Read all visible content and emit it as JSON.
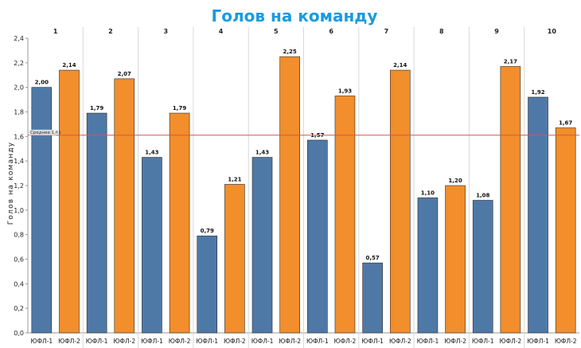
{
  "chart_data": {
    "type": "bar",
    "title": "Голов на команду",
    "ylabel": "Голов на команду",
    "ylim": [
      0,
      2.4
    ],
    "yticks": [
      "0,0",
      "0,2",
      "0,4",
      "0,6",
      "0,8",
      "1,0",
      "1,2",
      "1,4",
      "1,6",
      "1,8",
      "2,0",
      "2,2",
      "2,4"
    ],
    "grid": "vertical-separators",
    "groups": [
      {
        "label": "1",
        "bars": [
          {
            "category": "ЮФЛ-1",
            "value": 2.0,
            "label": "2,00"
          },
          {
            "category": "ЮФЛ-2",
            "value": 2.14,
            "label": "2,14"
          }
        ]
      },
      {
        "label": "2",
        "bars": [
          {
            "category": "ЮФЛ-1",
            "value": 1.79,
            "label": "1,79"
          },
          {
            "category": "ЮФЛ-2",
            "value": 2.07,
            "label": "2,07"
          }
        ]
      },
      {
        "label": "3",
        "bars": [
          {
            "category": "ЮФЛ-1",
            "value": 1.43,
            "label": "1,43"
          },
          {
            "category": "ЮФЛ-2",
            "value": 1.79,
            "label": "1,79"
          }
        ]
      },
      {
        "label": "4",
        "bars": [
          {
            "category": "ЮФЛ-1",
            "value": 0.79,
            "label": "0,79"
          },
          {
            "category": "ЮФЛ-2",
            "value": 1.21,
            "label": "1,21"
          }
        ]
      },
      {
        "label": "5",
        "bars": [
          {
            "category": "ЮФЛ-1",
            "value": 1.43,
            "label": "1,43"
          },
          {
            "category": "ЮФЛ-2",
            "value": 2.25,
            "label": "2,25"
          }
        ]
      },
      {
        "label": "6",
        "bars": [
          {
            "category": "ЮФЛ-1",
            "value": 1.57,
            "label": "1,57"
          },
          {
            "category": "ЮФЛ-2",
            "value": 1.93,
            "label": "1,93"
          }
        ]
      },
      {
        "label": "7",
        "bars": [
          {
            "category": "ЮФЛ-1",
            "value": 0.57,
            "label": "0,57"
          },
          {
            "category": "ЮФЛ-2",
            "value": 2.14,
            "label": "2,14"
          }
        ]
      },
      {
        "label": "8",
        "bars": [
          {
            "category": "ЮФЛ-1",
            "value": 1.1,
            "label": "1,10"
          },
          {
            "category": "ЮФЛ-2",
            "value": 1.2,
            "label": "1,20"
          }
        ]
      },
      {
        "label": "9",
        "bars": [
          {
            "category": "ЮФЛ-1",
            "value": 1.08,
            "label": "1,08"
          },
          {
            "category": "ЮФЛ-2",
            "value": 2.17,
            "label": "2,17"
          }
        ]
      },
      {
        "label": "10",
        "bars": [
          {
            "category": "ЮФЛ-1",
            "value": 1.92,
            "label": "1,92"
          },
          {
            "category": "ЮФЛ-2",
            "value": 1.67,
            "label": "1,67"
          }
        ]
      }
    ],
    "reference_line": {
      "value": 1.61,
      "label": "Среднее 1,61"
    },
    "colors": {
      "ЮФЛ-1": "#4e79a7",
      "ЮФЛ-2": "#f28e2b",
      "reference": "#d9534f",
      "title": "#1a9be0"
    }
  }
}
